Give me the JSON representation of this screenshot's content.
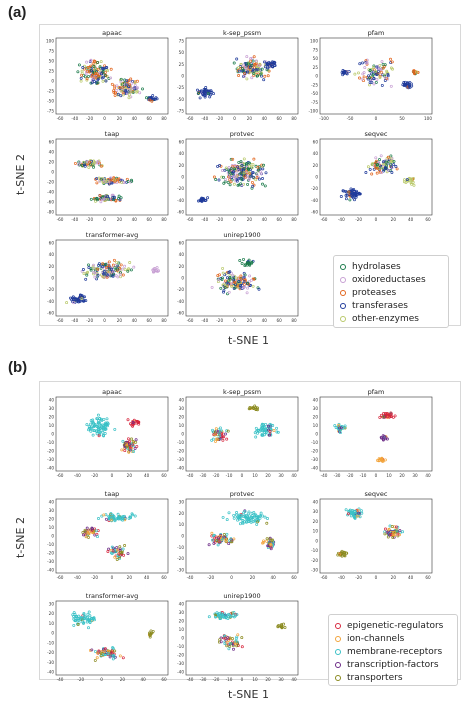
{
  "figure": {
    "panel_a_label": "(a)",
    "panel_b_label": "(b)",
    "panel_a_xlabel": "t-SNE 1",
    "panel_a_ylabel": "t-SNE 2",
    "panel_b_xlabel": "t-SNE 1",
    "panel_b_ylabel": "t-SNE 2"
  },
  "colors": {
    "hydrolases": "#1a7a4a",
    "oxidoreductases": "#c79fd3",
    "proteases": "#e2641c",
    "transferases": "#1f3a9a",
    "other-enzymes": "#b9c96a",
    "epigenetic-regulators": "#d7263d",
    "ion-channels": "#f2a33a",
    "membrane-receptors": "#39c1c6",
    "transcription-factors": "#6b2a86",
    "transporters": "#8a8a1f"
  },
  "chart_data": [
    {
      "panel": "(a)",
      "type": "scatter",
      "legend": [
        "hydrolases",
        "oxidoreductases",
        "proteases",
        "transferases",
        "other-enzymes"
      ],
      "legend_placement": "bottom-right",
      "subplots": [
        {
          "title": "apaac",
          "xlim": [
            -60,
            80
          ],
          "ylim": [
            -80,
            100
          ],
          "xticks": [
            "-60",
            "-40",
            "-20",
            "0",
            "20",
            "40",
            "60",
            "80"
          ],
          "yticks": [
            "100",
            "75",
            "50",
            "25",
            "0",
            "-25",
            "-50",
            "-75"
          ]
        },
        {
          "title": "k-sep_pssm",
          "xlim": [
            -60,
            80
          ],
          "ylim": [
            -80,
            80
          ],
          "xticks": [
            "-60",
            "-40",
            "-20",
            "0",
            "20",
            "40",
            "60",
            "80"
          ],
          "yticks": [
            "75",
            "50",
            "25",
            "0",
            "-25",
            "-50",
            "-75"
          ]
        },
        {
          "title": "pfam",
          "xlim": [
            -100,
            100
          ],
          "ylim": [
            -100,
            100
          ],
          "xticks": [
            "-100",
            "-50",
            "0",
            "50",
            "100"
          ],
          "yticks": [
            "100",
            "75",
            "50",
            "25",
            "0",
            "-25",
            "-50",
            "-75",
            "-100"
          ]
        },
        {
          "title": "taap",
          "xlim": [
            -60,
            80
          ],
          "ylim": [
            -80,
            80
          ],
          "xticks": [
            "-60",
            "-40",
            "-20",
            "0",
            "20",
            "40",
            "60",
            "80"
          ],
          "yticks": [
            "60",
            "40",
            "20",
            "0",
            "-20",
            "-40",
            "-60",
            "-80"
          ]
        },
        {
          "title": "protvec",
          "xlim": [
            -60,
            80
          ],
          "ylim": [
            -80,
            80
          ],
          "xticks": [
            "-60",
            "-40",
            "-20",
            "0",
            "20",
            "40",
            "60",
            "80"
          ],
          "yticks": [
            "60",
            "40",
            "20",
            "0",
            "-20",
            "-40",
            "-60"
          ]
        },
        {
          "title": "seqvec",
          "xlim": [
            -60,
            80
          ],
          "ylim": [
            -80,
            80
          ],
          "xticks": [
            "-60",
            "-40",
            "-20",
            "0",
            "20",
            "40",
            "60"
          ],
          "yticks": [
            "60",
            "40",
            "20",
            "0",
            "-20",
            "-40",
            "-60"
          ]
        },
        {
          "title": "transformer-avg",
          "xlim": [
            -60,
            80
          ],
          "ylim": [
            -80,
            80
          ],
          "xticks": [
            "-60",
            "-40",
            "-20",
            "0",
            "20",
            "40",
            "60",
            "80"
          ],
          "yticks": [
            "60",
            "40",
            "20",
            "0",
            "-20",
            "-40",
            "-60"
          ]
        },
        {
          "title": "unirep1900",
          "xlim": [
            -60,
            80
          ],
          "ylim": [
            -80,
            80
          ],
          "xticks": [
            "-60",
            "-40",
            "-20",
            "0",
            "20",
            "40",
            "60",
            "80"
          ],
          "yticks": [
            "60",
            "40",
            "20",
            "0",
            "-20",
            "-40",
            "-60"
          ]
        }
      ]
    },
    {
      "panel": "(b)",
      "type": "scatter",
      "legend": [
        "epigenetic-regulators",
        "ion-channels",
        "membrane-receptors",
        "transcription-factors",
        "transporters"
      ],
      "legend_placement": "bottom-right",
      "subplots": [
        {
          "title": "apaac",
          "xlim": [
            -60,
            60
          ],
          "ylim": [
            -40,
            40
          ],
          "xticks": [
            "-60",
            "-40",
            "-20",
            "0",
            "20",
            "40",
            "60"
          ],
          "yticks": [
            "40",
            "30",
            "20",
            "10",
            "0",
            "-10",
            "-20",
            "-30",
            "-40"
          ]
        },
        {
          "title": "k-sep_pssm",
          "xlim": [
            -40,
            40
          ],
          "ylim": [
            -40,
            40
          ],
          "xticks": [
            "-40",
            "-30",
            "-20",
            "-10",
            "0",
            "10",
            "20",
            "30",
            "40"
          ],
          "yticks": [
            "40",
            "30",
            "20",
            "10",
            "0",
            "-10",
            "-20",
            "-30",
            "-40"
          ]
        },
        {
          "title": "pfam",
          "xlim": [
            -40,
            40
          ],
          "ylim": [
            -40,
            40
          ],
          "xticks": [
            "-40",
            "-30",
            "-20",
            "-10",
            "0",
            "10",
            "20",
            "30",
            "40"
          ],
          "yticks": [
            "40",
            "30",
            "20",
            "10",
            "0",
            "-10",
            "-20",
            "-30",
            "-40"
          ]
        },
        {
          "title": "taap",
          "xlim": [
            -60,
            60
          ],
          "ylim": [
            -40,
            40
          ],
          "xticks": [
            "-60",
            "-40",
            "-20",
            "0",
            "20",
            "40",
            "60"
          ],
          "yticks": [
            "40",
            "30",
            "20",
            "10",
            "0",
            "-10",
            "-20",
            "-30",
            "-40"
          ]
        },
        {
          "title": "protvec",
          "xlim": [
            -40,
            60
          ],
          "ylim": [
            -40,
            40
          ],
          "xticks": [
            "-40",
            "-20",
            "0",
            "20",
            "40",
            "60"
          ],
          "yticks": [
            "30",
            "20",
            "10",
            "0",
            "-10",
            "-20",
            "-30"
          ]
        },
        {
          "title": "seqvec",
          "xlim": [
            -60,
            60
          ],
          "ylim": [
            -40,
            40
          ],
          "xticks": [
            "-60",
            "-40",
            "-20",
            "0",
            "20",
            "40",
            "60"
          ],
          "yticks": [
            "40",
            "30",
            "20",
            "10",
            "0",
            "-10",
            "-20",
            "-30"
          ]
        },
        {
          "title": "transformer-avg",
          "xlim": [
            -40,
            60
          ],
          "ylim": [
            -40,
            40
          ],
          "xticks": [
            "-40",
            "-20",
            "0",
            "20",
            "40",
            "60"
          ],
          "yticks": [
            "30",
            "20",
            "10",
            "0",
            "-10",
            "-20",
            "-30",
            "-40"
          ]
        },
        {
          "title": "unirep1900",
          "xlim": [
            -40,
            40
          ],
          "ylim": [
            -40,
            40
          ],
          "xticks": [
            "-40",
            "-30",
            "-20",
            "-10",
            "0",
            "10",
            "20",
            "30",
            "40"
          ],
          "yticks": [
            "40",
            "30",
            "20",
            "10",
            "0",
            "-10",
            "-20",
            "-30",
            "-40"
          ]
        }
      ]
    }
  ]
}
